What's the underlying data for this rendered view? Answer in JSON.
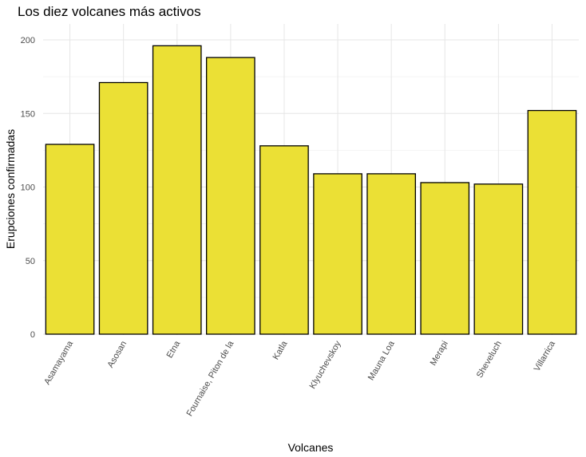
{
  "chart_data": {
    "type": "bar",
    "title": "Los diez volcanes más activos",
    "xlabel": "Volcanes",
    "ylabel": "Erupciones confirmadas",
    "categories": [
      "Asamayama",
      "Asosan",
      "Etna",
      "Fournaise, Piton de la",
      "Katla",
      "Klyuchevskoy",
      "Mauna Loa",
      "Merapi",
      "Sheveluch",
      "Villarrica"
    ],
    "values": [
      129,
      171,
      196,
      188,
      128,
      109,
      109,
      103,
      102,
      152
    ],
    "ylim": [
      0,
      210
    ],
    "yticks": [
      0,
      50,
      100,
      150,
      200
    ],
    "grid": true,
    "bar_color": "#ebe035",
    "bar_border_color": "#000000"
  }
}
